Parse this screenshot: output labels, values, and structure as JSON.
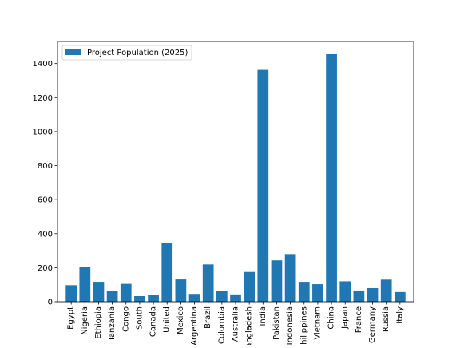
{
  "chart_data": {
    "type": "bar",
    "title": "",
    "xlabel": "",
    "ylabel": "",
    "ylim": [
      0,
      1530
    ],
    "yticks": [
      0,
      200,
      400,
      600,
      800,
      1000,
      1200,
      1400
    ],
    "categories": [
      "Egypt",
      "Nigeria",
      "Ethiopia",
      "Tanzania",
      "Congo",
      "South",
      "Canada",
      "United",
      "Mexico",
      "Argentina",
      "Brazil",
      "Colombia",
      "Australia",
      "Bangladesh",
      "India",
      "Pakistan",
      "Indonesia",
      "Philippines",
      "Vietnam",
      "China",
      "Japan",
      "France",
      "Germany",
      "Russia",
      "Italy"
    ],
    "series": [
      {
        "name": "Project Population (2025)",
        "color": "#1f77b4",
        "values": [
          97,
          205,
          117,
          61,
          105,
          33,
          38,
          346,
          131,
          46,
          219,
          63,
          43,
          175,
          1363,
          243,
          280,
          117,
          103,
          1455,
          120,
          66,
          80,
          130,
          57
        ]
      }
    ],
    "legend": "upper-left",
    "grid": false
  }
}
